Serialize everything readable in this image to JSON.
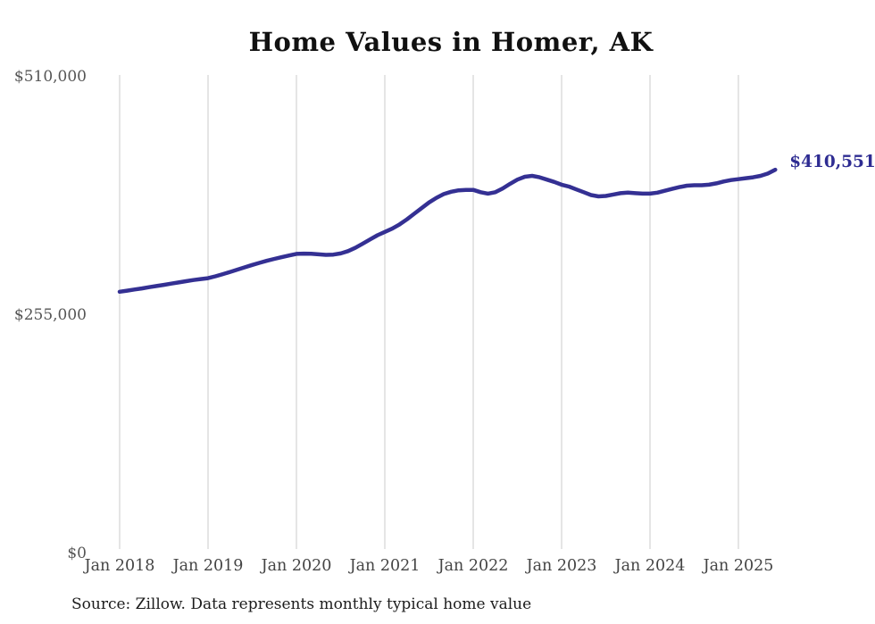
{
  "chart_data": {
    "type": "line",
    "title": "Home Values in Homer, AK",
    "xlabel": "",
    "ylabel": "",
    "ylim": [
      0,
      510000
    ],
    "grid": "vertical-only",
    "legend": "none",
    "line_color": "#343093",
    "grid_color": "#cbcbcb",
    "end_label": "$410,551",
    "end_value": 410551,
    "source_note": "Source: Zillow. Data represents monthly typical home value",
    "y_ticks": [
      {
        "label": "$510,000",
        "value": 510000
      },
      {
        "label": "$255,000",
        "value": 255000
      },
      {
        "label": "$0",
        "value": 0
      }
    ],
    "x_tick_labels": [
      "Jan 2018",
      "Jan 2019",
      "Jan 2020",
      "Jan 2021",
      "Jan 2022",
      "Jan 2023",
      "Jan 2024",
      "Jan 2025"
    ],
    "series": [
      {
        "name": "Monthly typical home value",
        "x": [
          "2018-01",
          "2018-02",
          "2018-03",
          "2018-04",
          "2018-05",
          "2018-06",
          "2018-07",
          "2018-08",
          "2018-09",
          "2018-10",
          "2018-11",
          "2018-12",
          "2019-01",
          "2019-02",
          "2019-03",
          "2019-04",
          "2019-05",
          "2019-06",
          "2019-07",
          "2019-08",
          "2019-09",
          "2019-10",
          "2019-11",
          "2019-12",
          "2020-01",
          "2020-02",
          "2020-03",
          "2020-04",
          "2020-05",
          "2020-06",
          "2020-07",
          "2020-08",
          "2020-09",
          "2020-10",
          "2020-11",
          "2020-12",
          "2021-01",
          "2021-02",
          "2021-03",
          "2021-04",
          "2021-05",
          "2021-06",
          "2021-07",
          "2021-08",
          "2021-09",
          "2021-10",
          "2021-11",
          "2021-12",
          "2022-01",
          "2022-02",
          "2022-03",
          "2022-04",
          "2022-05",
          "2022-06",
          "2022-07",
          "2022-08",
          "2022-09",
          "2022-10",
          "2022-11",
          "2022-12",
          "2023-01",
          "2023-02",
          "2023-03",
          "2023-04",
          "2023-05",
          "2023-06",
          "2023-07",
          "2023-08",
          "2023-09",
          "2023-10",
          "2023-11",
          "2023-12",
          "2024-01",
          "2024-02",
          "2024-03",
          "2024-04",
          "2024-05",
          "2024-06",
          "2024-07",
          "2024-08",
          "2024-09",
          "2024-10",
          "2024-11",
          "2024-12",
          "2025-01",
          "2025-02",
          "2025-03",
          "2025-04",
          "2025-05",
          "2025-06"
        ],
        "values": [
          280000,
          281200,
          282400,
          283600,
          284900,
          286100,
          287400,
          288700,
          290000,
          291300,
          292500,
          293600,
          294500,
          296500,
          298800,
          301200,
          303700,
          306200,
          308700,
          311000,
          313200,
          315200,
          317000,
          318800,
          320500,
          320800,
          320600,
          320000,
          319500,
          319800,
          321000,
          323500,
          327000,
          331500,
          336000,
          340500,
          344000,
          347500,
          352000,
          357500,
          363500,
          369500,
          375500,
          380500,
          384500,
          387000,
          388500,
          389000,
          389000,
          386500,
          385000,
          386500,
          390500,
          395500,
          400000,
          403000,
          404000,
          402500,
          400000,
          397500,
          394500,
          392500,
          389500,
          386500,
          383500,
          382000,
          382500,
          384000,
          385500,
          386000,
          385500,
          385000,
          385000,
          386000,
          388000,
          390000,
          392000,
          393500,
          394000,
          394000,
          394500,
          396000,
          398000,
          399500,
          400500,
          401500,
          402500,
          404000,
          406500,
          410551
        ]
      }
    ]
  }
}
